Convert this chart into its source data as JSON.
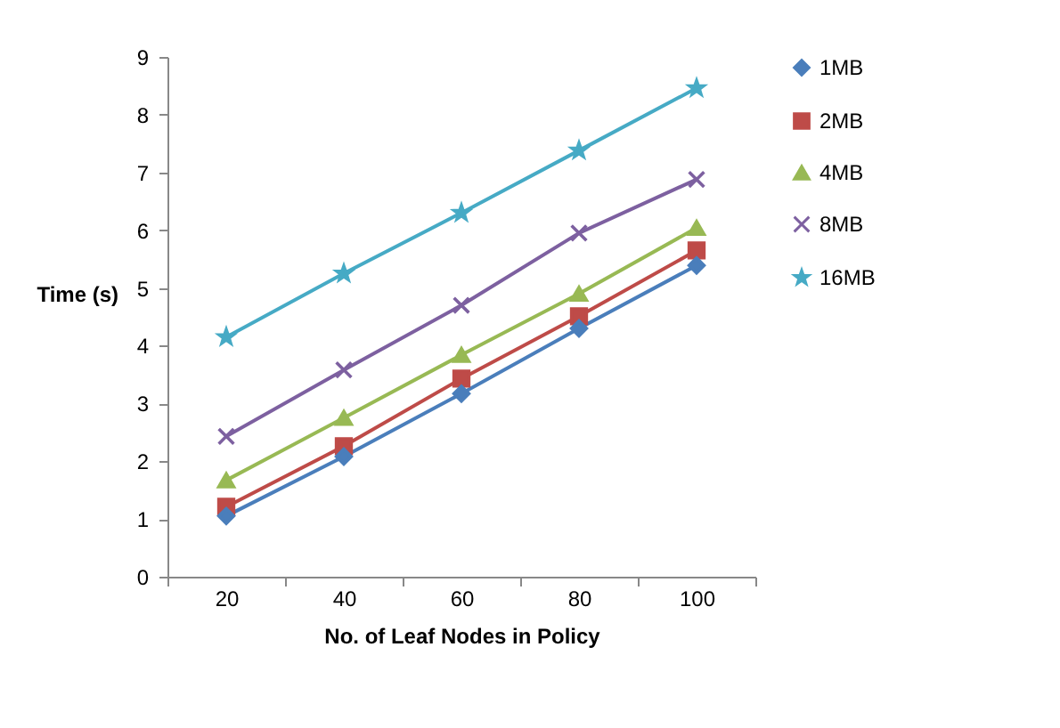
{
  "chart_data": {
    "type": "line",
    "xlabel": "No. of Leaf Nodes in Policy",
    "ylabel": "Time (s)",
    "categories": [
      "20",
      "40",
      "60",
      "80",
      "100"
    ],
    "series": [
      {
        "name": "1MB",
        "color": "#4a7ebb",
        "marker": "diamond",
        "values": [
          1.05,
          2.08,
          3.17,
          4.3,
          5.39
        ]
      },
      {
        "name": "2MB",
        "color": "#be4b48",
        "marker": "square",
        "values": [
          1.21,
          2.26,
          3.43,
          4.51,
          5.65
        ]
      },
      {
        "name": "4MB",
        "color": "#98b954",
        "marker": "triangle",
        "values": [
          1.67,
          2.75,
          3.84,
          4.9,
          6.04
        ]
      },
      {
        "name": "8MB",
        "color": "#7d60a0",
        "marker": "cross",
        "values": [
          2.43,
          3.58,
          4.7,
          5.95,
          6.88
        ]
      },
      {
        "name": "16MB",
        "color": "#46aac5",
        "marker": "star",
        "values": [
          4.15,
          5.25,
          6.3,
          7.38,
          8.46
        ]
      }
    ],
    "ylim": [
      0,
      9
    ],
    "yticks": [
      0,
      1,
      2,
      3,
      4,
      5,
      6,
      7,
      8,
      9
    ],
    "grid": false,
    "legend": "right",
    "line_style": "solid"
  }
}
